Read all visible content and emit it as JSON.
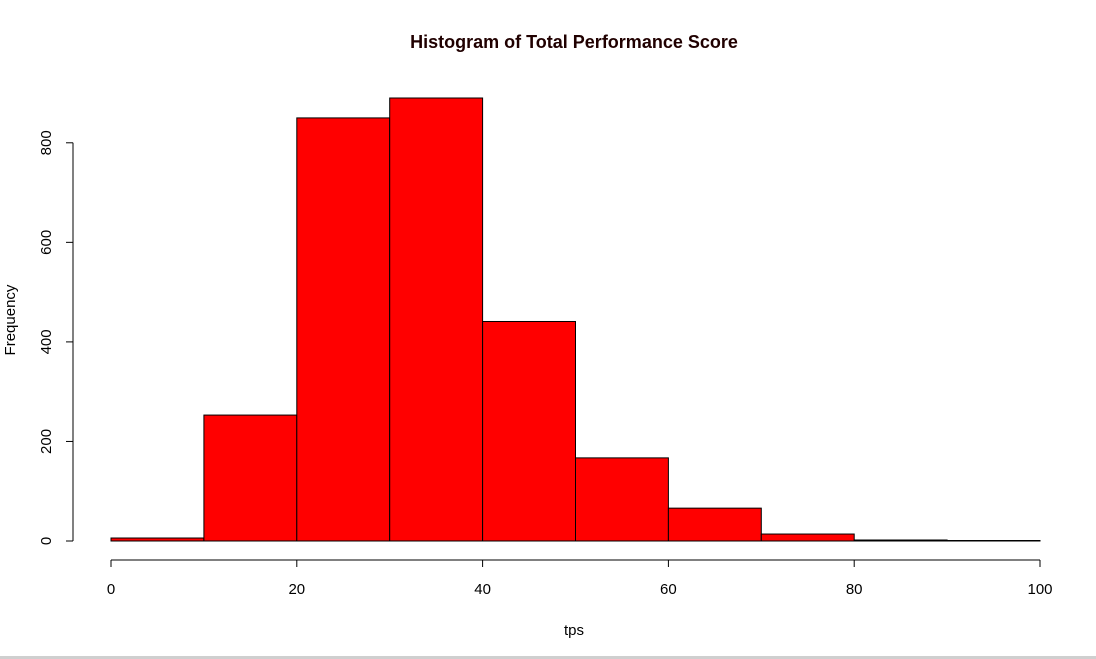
{
  "chart_data": {
    "type": "bar",
    "title": "Histogram of Total Performance Score",
    "xlabel": "tps",
    "ylabel": "Frequency",
    "bins": [
      {
        "from": 0,
        "to": 10,
        "count": 6
      },
      {
        "from": 10,
        "to": 20,
        "count": 253
      },
      {
        "from": 20,
        "to": 30,
        "count": 850
      },
      {
        "from": 30,
        "to": 40,
        "count": 890
      },
      {
        "from": 40,
        "to": 50,
        "count": 441
      },
      {
        "from": 50,
        "to": 60,
        "count": 167
      },
      {
        "from": 60,
        "to": 70,
        "count": 66
      },
      {
        "from": 70,
        "to": 80,
        "count": 14
      },
      {
        "from": 80,
        "to": 90,
        "count": 2
      },
      {
        "from": 90,
        "to": 100,
        "count": 1
      }
    ],
    "xlim": [
      0,
      100
    ],
    "ylim": [
      0,
      890
    ],
    "x_ticks": [
      "0",
      "20",
      "40",
      "60",
      "80",
      "100"
    ],
    "y_ticks": [
      "0",
      "200",
      "400",
      "600",
      "800"
    ],
    "bar_color": "#ff0000",
    "border_color": "#000000",
    "grid": false,
    "legend": "none"
  }
}
